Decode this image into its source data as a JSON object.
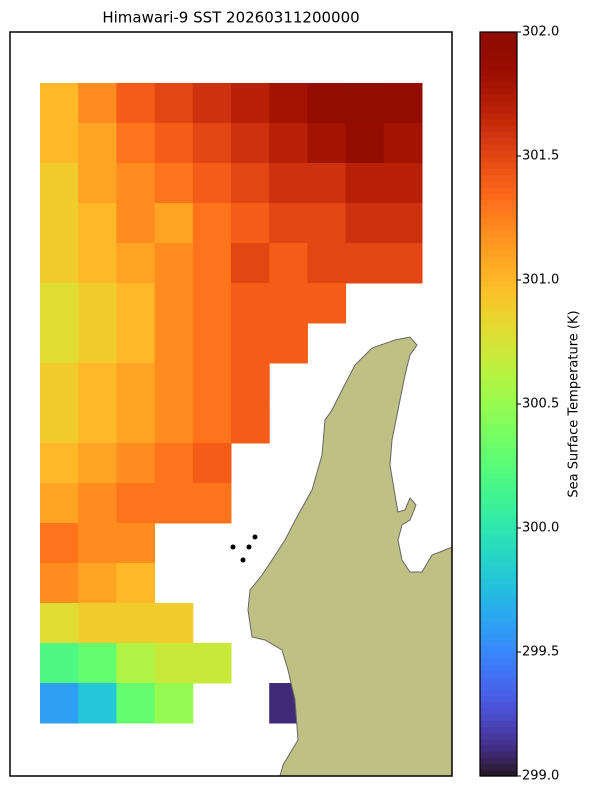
{
  "chart_data": {
    "type": "heatmap",
    "title": "Himawari-9 SST 20260311200000",
    "colormap": "turbo",
    "z": [
      [
        301.0,
        301.2,
        301.4,
        301.5,
        301.6,
        301.7,
        301.8,
        301.9,
        302.0,
        301.9
      ],
      [
        301.0,
        301.1,
        301.3,
        301.4,
        301.5,
        301.6,
        301.7,
        301.8,
        301.9,
        301.8
      ],
      [
        300.9,
        301.1,
        301.2,
        301.3,
        301.4,
        301.5,
        301.6,
        301.6,
        301.7,
        301.7
      ],
      [
        300.9,
        301.0,
        301.2,
        301.1,
        301.3,
        301.4,
        301.5,
        301.5,
        301.6,
        301.6
      ],
      [
        300.9,
        301.0,
        301.1,
        301.2,
        301.3,
        301.5,
        301.4,
        301.5,
        301.5,
        301.5
      ],
      [
        300.8,
        300.9,
        301.0,
        301.2,
        301.3,
        301.4,
        301.4,
        301.4,
        null,
        null
      ],
      [
        300.8,
        300.9,
        301.0,
        301.2,
        301.3,
        301.4,
        301.4,
        null,
        null,
        null
      ],
      [
        300.9,
        301.0,
        301.1,
        301.2,
        301.3,
        301.4,
        null,
        null,
        null,
        null
      ],
      [
        300.9,
        301.0,
        301.1,
        301.2,
        301.3,
        301.4,
        null,
        null,
        null,
        null
      ],
      [
        301.0,
        301.1,
        301.2,
        301.3,
        301.4,
        null,
        null,
        null,
        null,
        null
      ],
      [
        301.1,
        301.2,
        301.3,
        301.3,
        301.3,
        null,
        null,
        null,
        null,
        null
      ],
      [
        301.3,
        301.2,
        301.2,
        null,
        null,
        null,
        null,
        null,
        null,
        null
      ],
      [
        301.2,
        301.1,
        301.0,
        null,
        null,
        null,
        null,
        null,
        null,
        null
      ],
      [
        300.8,
        300.9,
        300.9,
        300.9,
        null,
        null,
        null,
        null,
        null,
        null
      ],
      [
        300.2,
        300.3,
        300.6,
        300.7,
        300.7,
        null,
        null,
        null,
        null,
        null
      ],
      [
        299.6,
        299.8,
        300.3,
        300.5,
        null,
        null,
        299.1,
        null,
        null,
        null
      ]
    ],
    "colorbar": {
      "label": "Sea Surface Temperature (K)",
      "clim": [
        299,
        302
      ],
      "ticks": [
        {
          "value": 299,
          "label": "299.0"
        },
        299.5,
        {
          "value": 300,
          "label": "300.0"
        },
        300.5,
        {
          "value": 301,
          "label": "301.0"
        },
        301.5,
        {
          "value": 302,
          "label": "302.0"
        }
      ]
    }
  }
}
